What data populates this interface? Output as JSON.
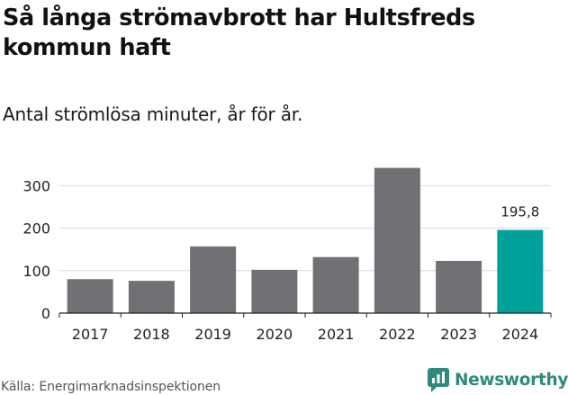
{
  "title": "Så långa strömavbrott har Hultsfreds kommun haft",
  "subtitle": "Antal strömlösa minuter, år för år.",
  "source": "Källa: Energimarknadsinspektionen",
  "brand": {
    "name": "Newsworthy",
    "icon": "newsworthy-logo-icon",
    "color": "#2f8a7e"
  },
  "colors": {
    "bar": "#717074",
    "highlight": "#00a19a",
    "grid": "#d9d9d9",
    "axis": "#222222",
    "text": "#222222"
  },
  "chart_data": {
    "type": "bar",
    "title": "Så långa strömavbrott har Hultsfreds kommun haft",
    "subtitle": "Antal strömlösa minuter, år för år.",
    "xlabel": "",
    "ylabel": "",
    "categories": [
      "2017",
      "2018",
      "2019",
      "2020",
      "2021",
      "2022",
      "2023",
      "2024"
    ],
    "values": [
      80,
      76,
      157,
      102,
      132,
      342,
      123,
      195.8
    ],
    "highlight_index": 7,
    "highlight_label": "195,8",
    "yticks": [
      0,
      100,
      200,
      300
    ],
    "ytick_labels": [
      "0",
      "100",
      "200",
      "300"
    ],
    "ylim": [
      0,
      350
    ],
    "grid": true
  }
}
